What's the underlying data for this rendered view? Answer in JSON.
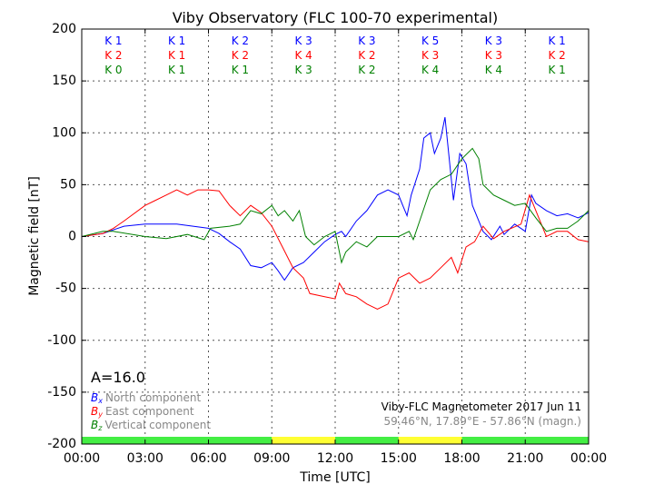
{
  "chart_data": {
    "type": "line",
    "title": "Viby Observatory (FLC 100-70 experimental)",
    "xlabel": "Time [UTC]",
    "ylabel": "Magnetic field [nT]",
    "xlim": [
      0,
      24
    ],
    "ylim": [
      -200,
      200
    ],
    "grid": true,
    "xticks": [
      "00:00",
      "03:00",
      "06:00",
      "09:00",
      "12:00",
      "15:00",
      "18:00",
      "21:00",
      "00:00"
    ],
    "yticks": [
      200,
      150,
      100,
      50,
      0,
      -50,
      -100,
      -150,
      -200
    ],
    "colors": {
      "north": "#0000ff",
      "east": "#ff0000",
      "vertical": "#008000",
      "quiet": "#44ee44",
      "active": "#ffff33",
      "legend_text": "#888888"
    },
    "k_indices": {
      "north": [
        "K 1",
        "K 1",
        "K 2",
        "K 3",
        "K 3",
        "K 5",
        "K 3",
        "K 1"
      ],
      "east": [
        "K 2",
        "K 1",
        "K 2",
        "K 4",
        "K 2",
        "K 3",
        "K 3",
        "K 2"
      ],
      "vertical": [
        "K 0",
        "K 1",
        "K 1",
        "K 3",
        "K 2",
        "K 4",
        "K 4",
        "K 1"
      ]
    },
    "activity_bar": [
      "quiet",
      "quiet",
      "quiet",
      "active",
      "quiet",
      "active",
      "quiet",
      "quiet"
    ],
    "a_index": "A=16.0",
    "legend": [
      {
        "symbol": "B",
        "sub": "x",
        "label": "North component",
        "series": "north"
      },
      {
        "symbol": "B",
        "sub": "y",
        "label": "East component",
        "series": "east"
      },
      {
        "symbol": "B",
        "sub": "z",
        "label": "Vertical component",
        "series": "vertical"
      }
    ],
    "station_label": "Viby-FLC Magnetometer 2017 Jun 11",
    "coords_label": "59.46°N, 17.89°E - 57.86°N (magn.)",
    "series": [
      {
        "name": "North component",
        "key": "north",
        "points": [
          [
            0,
            0
          ],
          [
            1,
            3
          ],
          [
            2,
            10
          ],
          [
            3,
            12
          ],
          [
            4.5,
            12
          ],
          [
            6,
            8
          ],
          [
            6.5,
            3
          ],
          [
            7,
            -5
          ],
          [
            7.5,
            -12
          ],
          [
            8,
            -28
          ],
          [
            8.5,
            -30
          ],
          [
            9,
            -25
          ],
          [
            9.3,
            -33
          ],
          [
            9.6,
            -42
          ],
          [
            10,
            -30
          ],
          [
            10.5,
            -25
          ],
          [
            11,
            -15
          ],
          [
            11.5,
            -5
          ],
          [
            12,
            2
          ],
          [
            12.3,
            5
          ],
          [
            12.5,
            0
          ],
          [
            13,
            15
          ],
          [
            13.5,
            25
          ],
          [
            14,
            40
          ],
          [
            14.5,
            45
          ],
          [
            15,
            40
          ],
          [
            15.2,
            30
          ],
          [
            15.4,
            20
          ],
          [
            15.6,
            40
          ],
          [
            16,
            65
          ],
          [
            16.2,
            95
          ],
          [
            16.5,
            100
          ],
          [
            16.7,
            80
          ],
          [
            17,
            95
          ],
          [
            17.2,
            115
          ],
          [
            17.5,
            55
          ],
          [
            17.6,
            35
          ],
          [
            17.9,
            80
          ],
          [
            18.2,
            70
          ],
          [
            18.5,
            30
          ],
          [
            19,
            5
          ],
          [
            19.4,
            -3
          ],
          [
            19.8,
            10
          ],
          [
            20,
            2
          ],
          [
            20.5,
            12
          ],
          [
            21,
            5
          ],
          [
            21.3,
            40
          ],
          [
            21.5,
            32
          ],
          [
            22,
            25
          ],
          [
            22.5,
            20
          ],
          [
            23,
            22
          ],
          [
            23.5,
            18
          ],
          [
            24,
            23
          ]
        ]
      },
      {
        "name": "East component",
        "key": "east",
        "points": [
          [
            0,
            0
          ],
          [
            1,
            3
          ],
          [
            1.5,
            8
          ],
          [
            2,
            15
          ],
          [
            3,
            30
          ],
          [
            3.5,
            35
          ],
          [
            4,
            40
          ],
          [
            4.5,
            45
          ],
          [
            5,
            40
          ],
          [
            5.5,
            45
          ],
          [
            6,
            45
          ],
          [
            6.5,
            44
          ],
          [
            7,
            30
          ],
          [
            7.5,
            20
          ],
          [
            8,
            30
          ],
          [
            8.5,
            23
          ],
          [
            9,
            10
          ],
          [
            9.5,
            -10
          ],
          [
            10,
            -30
          ],
          [
            10.5,
            -40
          ],
          [
            10.8,
            -55
          ],
          [
            11.5,
            -58
          ],
          [
            12,
            -60
          ],
          [
            12.2,
            -45
          ],
          [
            12.5,
            -55
          ],
          [
            13,
            -58
          ],
          [
            13.5,
            -65
          ],
          [
            14,
            -70
          ],
          [
            14.5,
            -65
          ],
          [
            15,
            -40
          ],
          [
            15.5,
            -35
          ],
          [
            16,
            -45
          ],
          [
            16.5,
            -40
          ],
          [
            17,
            -30
          ],
          [
            17.5,
            -20
          ],
          [
            17.8,
            -35
          ],
          [
            18.2,
            -10
          ],
          [
            18.6,
            -5
          ],
          [
            19,
            10
          ],
          [
            19.5,
            -2
          ],
          [
            20,
            5
          ],
          [
            20.8,
            12
          ],
          [
            21.2,
            40
          ],
          [
            21.5,
            25
          ],
          [
            22,
            0
          ],
          [
            22.5,
            5
          ],
          [
            23,
            5
          ],
          [
            23.5,
            -3
          ],
          [
            24,
            -5
          ]
        ]
      },
      {
        "name": "Vertical component",
        "key": "vertical",
        "points": [
          [
            0,
            0
          ],
          [
            1,
            5
          ],
          [
            1.5,
            5
          ],
          [
            3,
            0
          ],
          [
            4,
            -2
          ],
          [
            5,
            2
          ],
          [
            5.8,
            -3
          ],
          [
            6.1,
            8
          ],
          [
            7,
            10
          ],
          [
            7.5,
            12
          ],
          [
            8,
            25
          ],
          [
            8.5,
            22
          ],
          [
            9,
            30
          ],
          [
            9.3,
            20
          ],
          [
            9.6,
            25
          ],
          [
            10,
            15
          ],
          [
            10.3,
            25
          ],
          [
            10.6,
            0
          ],
          [
            11,
            -8
          ],
          [
            11.5,
            0
          ],
          [
            12,
            5
          ],
          [
            12.3,
            -25
          ],
          [
            12.5,
            -15
          ],
          [
            13,
            -5
          ],
          [
            13.5,
            -10
          ],
          [
            14,
            0
          ],
          [
            15,
            0
          ],
          [
            15.5,
            5
          ],
          [
            15.7,
            -3
          ],
          [
            16,
            15
          ],
          [
            16.5,
            45
          ],
          [
            17,
            55
          ],
          [
            17.5,
            60
          ],
          [
            18,
            75
          ],
          [
            18.5,
            85
          ],
          [
            18.8,
            75
          ],
          [
            19,
            50
          ],
          [
            19.5,
            40
          ],
          [
            20,
            35
          ],
          [
            20.5,
            30
          ],
          [
            21,
            32
          ],
          [
            21.5,
            18
          ],
          [
            22,
            5
          ],
          [
            22.5,
            8
          ],
          [
            23,
            8
          ],
          [
            23.5,
            15
          ],
          [
            24,
            25
          ]
        ]
      }
    ]
  }
}
